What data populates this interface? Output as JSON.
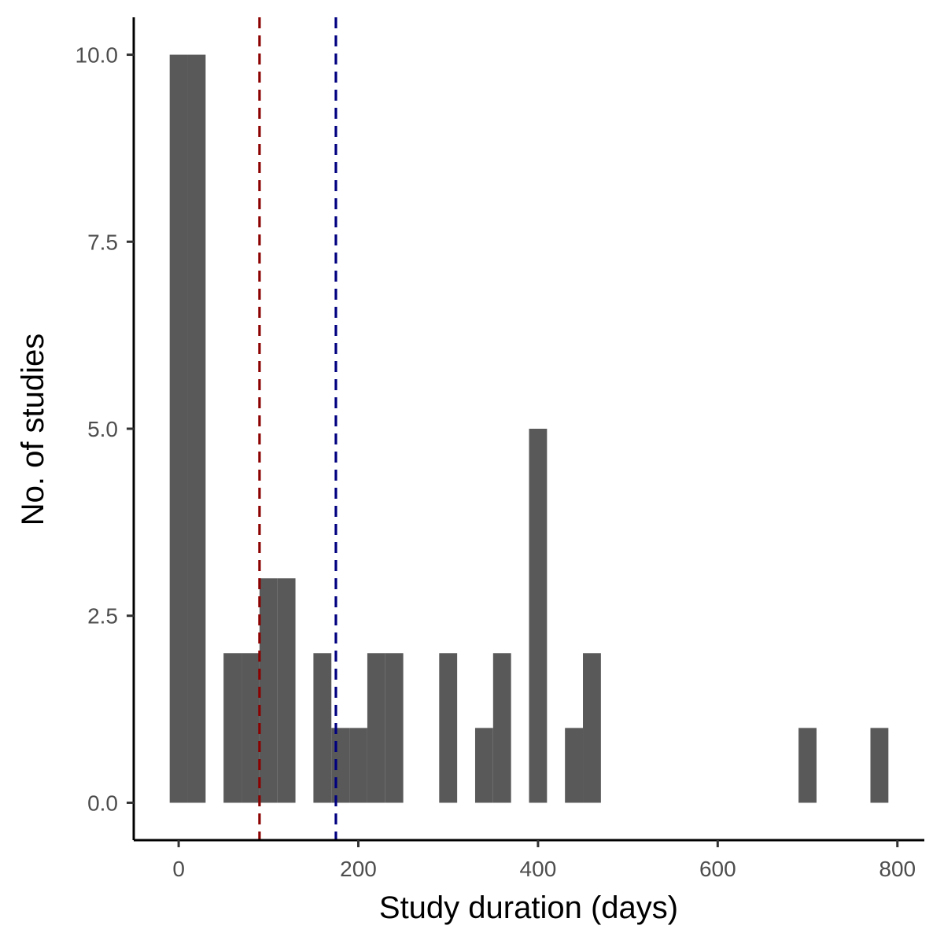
{
  "chart_data": {
    "type": "bar",
    "title": "",
    "xlabel": "Study duration (days)",
    "ylabel": "No. of studies",
    "xlim": [
      -50,
      830
    ],
    "ylim": [
      -0.5,
      10.5
    ],
    "x_ticks": [
      0,
      200,
      400,
      600,
      800
    ],
    "y_ticks": [
      0.0,
      2.5,
      5.0,
      7.5,
      10.0
    ],
    "x_tick_labels": [
      "0",
      "200",
      "400",
      "600",
      "800"
    ],
    "y_tick_labels": [
      "0.0",
      "2.5",
      "5.0",
      "7.5",
      "10.0"
    ],
    "grid": false,
    "bin_width": 20,
    "bar_color": "#595959",
    "bins": [
      {
        "start": -10,
        "end": 10,
        "count": 10
      },
      {
        "start": 10,
        "end": 30,
        "count": 10
      },
      {
        "start": 50,
        "end": 70,
        "count": 2
      },
      {
        "start": 70,
        "end": 90,
        "count": 2
      },
      {
        "start": 90,
        "end": 110,
        "count": 3
      },
      {
        "start": 110,
        "end": 130,
        "count": 3
      },
      {
        "start": 150,
        "end": 170,
        "count": 2
      },
      {
        "start": 170,
        "end": 190,
        "count": 1
      },
      {
        "start": 190,
        "end": 210,
        "count": 1
      },
      {
        "start": 210,
        "end": 230,
        "count": 2
      },
      {
        "start": 230,
        "end": 250,
        "count": 2
      },
      {
        "start": 290,
        "end": 310,
        "count": 2
      },
      {
        "start": 330,
        "end": 350,
        "count": 1
      },
      {
        "start": 350,
        "end": 370,
        "count": 2
      },
      {
        "start": 390,
        "end": 410,
        "count": 5
      },
      {
        "start": 430,
        "end": 450,
        "count": 1
      },
      {
        "start": 450,
        "end": 470,
        "count": 2
      },
      {
        "start": 690,
        "end": 710,
        "count": 1
      },
      {
        "start": 770,
        "end": 790,
        "count": 1
      }
    ],
    "reference_lines": [
      {
        "x": 90,
        "color": "#8b0000",
        "style": "dashed"
      },
      {
        "x": 175,
        "color": "#000080",
        "style": "dashed"
      }
    ]
  }
}
